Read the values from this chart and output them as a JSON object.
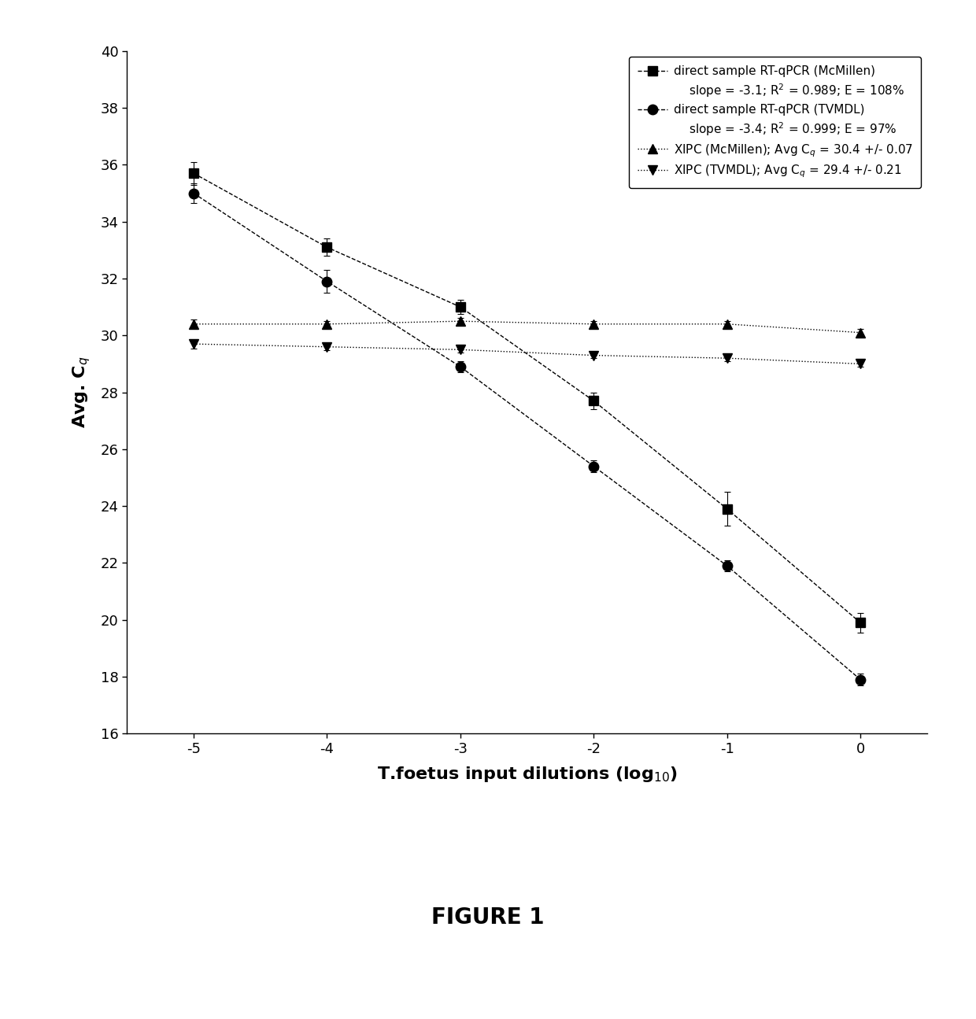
{
  "x": [
    -5,
    -4,
    -3,
    -2,
    -1,
    0
  ],
  "mcmillen_y": [
    35.7,
    33.1,
    31.0,
    27.7,
    23.9,
    19.9
  ],
  "mcmillen_yerr": [
    0.4,
    0.3,
    0.25,
    0.3,
    0.6,
    0.35
  ],
  "tvmdl_y": [
    35.0,
    31.9,
    28.9,
    25.4,
    21.9,
    17.9
  ],
  "tvmdl_yerr": [
    0.35,
    0.4,
    0.2,
    0.2,
    0.2,
    0.2
  ],
  "xipc_mcmillen_y": [
    30.4,
    30.4,
    30.5,
    30.4,
    30.4,
    30.1
  ],
  "xipc_mcmillen_yerr": [
    0.15,
    0.1,
    0.12,
    0.1,
    0.1,
    0.12
  ],
  "xipc_tvmdl_y": [
    29.7,
    29.6,
    29.5,
    29.3,
    29.2,
    29.0
  ],
  "xipc_tvmdl_yerr": [
    0.15,
    0.12,
    0.1,
    0.1,
    0.1,
    0.1
  ],
  "ylim": [
    16,
    40
  ],
  "yticks": [
    16,
    18,
    20,
    22,
    24,
    26,
    28,
    30,
    32,
    34,
    36,
    38,
    40
  ],
  "xticks": [
    -5,
    -4,
    -3,
    -2,
    -1,
    0
  ],
  "xlabel": "T.foetus input dilutions (log$_{10}$)",
  "ylabel": "Avg. C$_q$",
  "legend1": "direct sample RT-qPCR (McMillen)",
  "legend1_sub": "    slope = -3.1; R$^2$ = 0.989; E = 108%",
  "legend2": "direct sample RT-qPCR (TVMDL)",
  "legend2_sub": "    slope = -3.4; R$^2$ = 0.999; E = 97%",
  "legend3": "XIPC (McMillen); Avg C$_q$ = 30.4 +/- 0.07",
  "legend4": "XIPC (TVMDL); Avg C$_q$ = 29.4 +/- 0.21",
  "figure_label": "FIGURE 1",
  "background_color": "#ffffff"
}
